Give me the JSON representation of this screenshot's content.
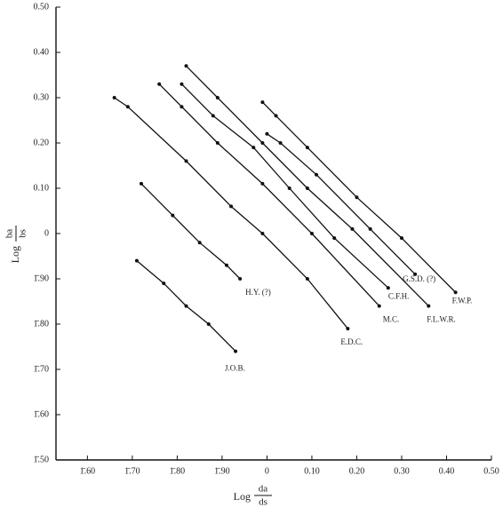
{
  "chart_data": {
    "type": "line",
    "x_label": {
      "main": "Log",
      "num": "da",
      "den": "ds"
    },
    "y_label": {
      "main": "Log",
      "num": "ba",
      "den": "bs"
    },
    "xlim": [
      -0.47,
      0.5
    ],
    "ylim": [
      -0.5,
      0.5
    ],
    "xticks": [
      {
        "value": -0.4,
        "label": "1̄.60"
      },
      {
        "value": -0.3,
        "label": "1̄.70"
      },
      {
        "value": -0.2,
        "label": "1̄.80"
      },
      {
        "value": -0.1,
        "label": "1̄.90"
      },
      0,
      {
        "value": 0.1,
        "label": "0.10"
      },
      {
        "value": 0.2,
        "label": "0.20"
      },
      {
        "value": 0.3,
        "label": "0.30"
      },
      {
        "value": 0.4,
        "label": "0.40"
      },
      {
        "value": 0.5,
        "label": "0.50"
      }
    ],
    "yticks": [
      {
        "value": -0.5,
        "label": "1̄.50"
      },
      {
        "value": -0.4,
        "label": "1̄.60"
      },
      {
        "value": -0.3,
        "label": "1̄.70"
      },
      {
        "value": -0.2,
        "label": "1̄.80"
      },
      {
        "value": -0.1,
        "label": "1̄.90"
      },
      0,
      {
        "value": 0.1,
        "label": "0.10"
      },
      {
        "value": 0.2,
        "label": "0.20"
      },
      {
        "value": 0.3,
        "label": "0.30"
      },
      {
        "value": 0.4,
        "label": "0.40"
      },
      {
        "value": 0.5,
        "label": "0.50"
      }
    ],
    "color": "#111",
    "series": [
      {
        "name": "J.O.B.",
        "x": [
          -0.29,
          -0.23,
          -0.18,
          -0.13,
          -0.07
        ],
        "values": [
          -0.06,
          -0.11,
          -0.16,
          -0.2,
          -0.26
        ]
      },
      {
        "name": "H.Y. (?)",
        "x": [
          -0.28,
          -0.21,
          -0.15,
          -0.09,
          -0.06
        ],
        "values": [
          0.11,
          0.04,
          -0.02,
          -0.07,
          -0.1
        ]
      },
      {
        "name": "E.D.C.",
        "x": [
          -0.34,
          -0.31,
          -0.18,
          -0.08,
          -0.01,
          0.09,
          0.18
        ],
        "values": [
          0.3,
          0.28,
          0.16,
          0.06,
          0.0,
          -0.1,
          -0.21
        ]
      },
      {
        "name": "M.C.",
        "x": [
          -0.24,
          -0.19,
          -0.11,
          -0.01,
          0.1,
          0.25
        ],
        "values": [
          0.33,
          0.28,
          0.2,
          0.11,
          0.0,
          -0.16
        ]
      },
      {
        "name": "C.F.H.",
        "x": [
          -0.19,
          -0.12,
          -0.03,
          0.05,
          0.15,
          0.27
        ],
        "values": [
          0.33,
          0.26,
          0.19,
          0.1,
          -0.01,
          -0.12
        ]
      },
      {
        "name": "F.L.W.R.",
        "x": [
          -0.18,
          -0.11,
          -0.01,
          0.09,
          0.19,
          0.36
        ],
        "values": [
          0.37,
          0.3,
          0.2,
          0.1,
          0.01,
          -0.16
        ]
      },
      {
        "name": "G.S.D. (?)",
        "x": [
          0.0,
          0.03,
          0.11,
          0.23,
          0.33
        ],
        "values": [
          0.22,
          0.2,
          0.13,
          0.01,
          -0.09
        ]
      },
      {
        "name": "F.W.P.",
        "x": [
          -0.01,
          0.02,
          0.09,
          0.2,
          0.3,
          0.42
        ],
        "values": [
          0.29,
          0.26,
          0.19,
          0.08,
          -0.01,
          -0.13
        ]
      }
    ]
  }
}
